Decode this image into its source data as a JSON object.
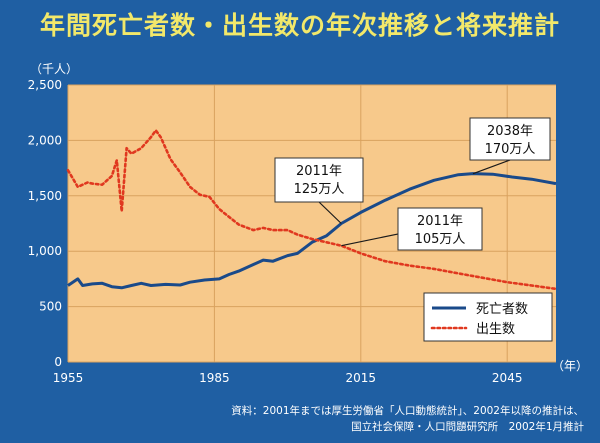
{
  "title": "年間死亡者数・出生数の年次推移と将来推計",
  "unit": "（千人）",
  "source": {
    "line1": "資料：2001年までは厚生労働省「人口動態統計」、2002年以降の推計は、",
    "line2": "国立社会保障・人口問題研究所　2002年1月推計"
  },
  "colors": {
    "plot_bg": "#f7c98b",
    "deaths": "#1a4a8a",
    "births": "#e0381f"
  },
  "chart_data": {
    "type": "line",
    "title": "年間死亡者数・出生数の年次推移と将来推計",
    "ylabel": "（千人）",
    "xlabel": "（年）",
    "xlim": [
      1955,
      2055
    ],
    "ylim": [
      0,
      2500
    ],
    "x_ticks": [
      {
        "value": 1955,
        "label": "1955"
      },
      {
        "value": 1985,
        "label": "1985"
      },
      {
        "value": 2015,
        "label": "2015"
      },
      {
        "value": 2045,
        "label": "2045"
      }
    ],
    "x_unit_label": "（年）",
    "y_ticks": [
      {
        "value": 0,
        "label": "0"
      },
      {
        "value": 500,
        "label": "500"
      },
      {
        "value": 1000,
        "label": "1,000"
      },
      {
        "value": 1500,
        "label": "1,500"
      },
      {
        "value": 2000,
        "label": "2,000"
      },
      {
        "value": 2500,
        "label": "2,500"
      }
    ],
    "grid": true,
    "legend_position": "bottom-right",
    "series": [
      {
        "name": "死亡者数",
        "style": "solid",
        "color": "#1a4a8a",
        "points": [
          [
            1955,
            690
          ],
          [
            1957,
            750
          ],
          [
            1958,
            690
          ],
          [
            1960,
            705
          ],
          [
            1962,
            710
          ],
          [
            1964,
            680
          ],
          [
            1966,
            670
          ],
          [
            1968,
            690
          ],
          [
            1970,
            710
          ],
          [
            1972,
            690
          ],
          [
            1975,
            700
          ],
          [
            1978,
            695
          ],
          [
            1980,
            720
          ],
          [
            1983,
            740
          ],
          [
            1986,
            750
          ],
          [
            1988,
            790
          ],
          [
            1990,
            820
          ],
          [
            1993,
            880
          ],
          [
            1995,
            920
          ],
          [
            1997,
            910
          ],
          [
            2000,
            960
          ],
          [
            2002,
            980
          ],
          [
            2005,
            1080
          ],
          [
            2008,
            1140
          ],
          [
            2011,
            1250
          ],
          [
            2015,
            1350
          ],
          [
            2020,
            1460
          ],
          [
            2025,
            1560
          ],
          [
            2030,
            1640
          ],
          [
            2035,
            1690
          ],
          [
            2038,
            1700
          ],
          [
            2042,
            1695
          ],
          [
            2046,
            1670
          ],
          [
            2050,
            1650
          ],
          [
            2055,
            1610
          ]
        ]
      },
      {
        "name": "出生数",
        "style": "dotted",
        "color": "#e0381f",
        "points": [
          [
            1955,
            1730
          ],
          [
            1957,
            1580
          ],
          [
            1959,
            1620
          ],
          [
            1960,
            1610
          ],
          [
            1962,
            1600
          ],
          [
            1964,
            1680
          ],
          [
            1965,
            1820
          ],
          [
            1966,
            1360
          ],
          [
            1967,
            1930
          ],
          [
            1968,
            1880
          ],
          [
            1970,
            1930
          ],
          [
            1972,
            2030
          ],
          [
            1973,
            2090
          ],
          [
            1974,
            2030
          ],
          [
            1976,
            1830
          ],
          [
            1978,
            1710
          ],
          [
            1980,
            1580
          ],
          [
            1982,
            1510
          ],
          [
            1984,
            1490
          ],
          [
            1986,
            1380
          ],
          [
            1988,
            1310
          ],
          [
            1990,
            1240
          ],
          [
            1993,
            1190
          ],
          [
            1995,
            1210
          ],
          [
            1997,
            1190
          ],
          [
            2000,
            1190
          ],
          [
            2002,
            1150
          ],
          [
            2005,
            1110
          ],
          [
            2008,
            1080
          ],
          [
            2011,
            1050
          ],
          [
            2015,
            980
          ],
          [
            2020,
            910
          ],
          [
            2025,
            870
          ],
          [
            2030,
            840
          ],
          [
            2035,
            800
          ],
          [
            2040,
            760
          ],
          [
            2045,
            720
          ],
          [
            2050,
            690
          ],
          [
            2055,
            660
          ]
        ]
      }
    ],
    "annotations": [
      {
        "line1": "2038年",
        "line2": "170万人",
        "year": 2038,
        "value": 1700,
        "series": "死亡者数"
      },
      {
        "line1": "2011年",
        "line2": "125万人",
        "year": 2011,
        "value": 1250,
        "series": "死亡者数"
      },
      {
        "line1": "2011年",
        "line2": "105万人",
        "year": 2011,
        "value": 1050,
        "series": "出生数"
      }
    ],
    "legend": [
      {
        "label": "死亡者数",
        "style": "solid"
      },
      {
        "label": "出生数",
        "style": "dotted"
      }
    ]
  }
}
